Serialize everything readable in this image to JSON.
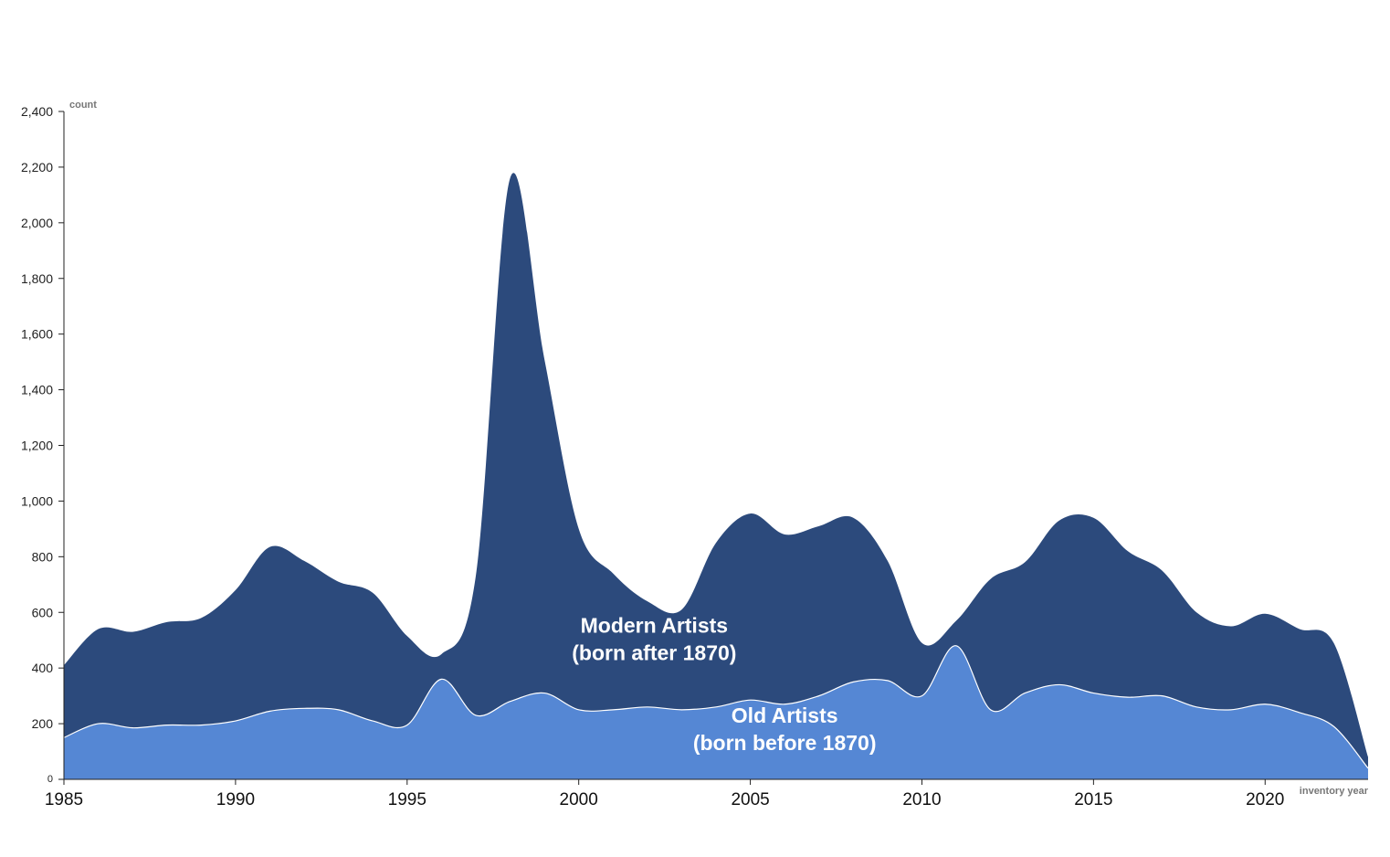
{
  "chart_data": {
    "type": "area",
    "xlabel": "inventory year",
    "ylabel": "count",
    "xlim": [
      1985,
      2023
    ],
    "ylim": [
      0,
      2400
    ],
    "x_ticks": [
      "1985",
      "1990",
      "1995",
      "2000",
      "2005",
      "2010",
      "2015",
      "2020"
    ],
    "y_ticks": [
      "0",
      "200",
      "400",
      "600",
      "800",
      "1,000",
      "1,200",
      "1,400",
      "1,600",
      "1,800",
      "2,000",
      "2,200",
      "2,400"
    ],
    "grid": false,
    "legend": "none",
    "colors": {
      "modern": "#2c4a7c",
      "old": "#5587d4",
      "divider": "#ffffff"
    },
    "x": [
      1985,
      1986,
      1987,
      1988,
      1989,
      1990,
      1991,
      1992,
      1993,
      1994,
      1995,
      1996,
      1997,
      1998,
      1999,
      2000,
      2001,
      2002,
      2003,
      2004,
      2005,
      2006,
      2007,
      2008,
      2009,
      2010,
      2011,
      2012,
      2013,
      2014,
      2015,
      2016,
      2017,
      2018,
      2019,
      2020,
      2021,
      2022,
      2023
    ],
    "series": [
      {
        "name": "Old Artists\n(born before 1870)",
        "label_lines": [
          "Old Artists",
          "(born before 1870)"
        ],
        "values": [
          150,
          200,
          185,
          195,
          195,
          210,
          245,
          255,
          250,
          210,
          195,
          360,
          230,
          280,
          310,
          250,
          250,
          260,
          250,
          260,
          285,
          270,
          300,
          350,
          355,
          300,
          480,
          250,
          310,
          340,
          310,
          295,
          300,
          260,
          250,
          270,
          240,
          190,
          40
        ]
      },
      {
        "name": "Modern Artists\n(born after 1870)",
        "label_lines": [
          "Modern Artists",
          "(born after 1870)"
        ],
        "values": [
          260,
          340,
          345,
          370,
          385,
          470,
          590,
          530,
          460,
          460,
          320,
          90,
          500,
          1880,
          1200,
          650,
          490,
          380,
          360,
          590,
          670,
          610,
          610,
          590,
          430,
          190,
          90,
          470,
          470,
          590,
          630,
          525,
          450,
          340,
          300,
          325,
          300,
          300,
          40
        ]
      }
    ]
  }
}
